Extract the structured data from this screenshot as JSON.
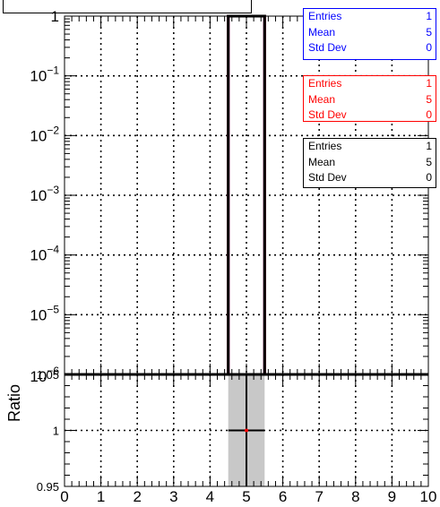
{
  "chart_data": [
    {
      "type": "bar",
      "scale": "log",
      "x": [
        0,
        1,
        2,
        3,
        4,
        5,
        6,
        7,
        8,
        9,
        10
      ],
      "xlim": [
        0,
        10
      ],
      "ylim": [
        1e-06,
        1
      ],
      "y_tick_labels": [
        "1",
        "10^-1",
        "10^-2",
        "10^-3",
        "10^-4",
        "10^-5",
        "10^-6"
      ],
      "grid": true,
      "series": [
        {
          "color": "#0000ff",
          "bins": [
            {
              "x_low": 4.5,
              "x_high": 5.5,
              "value": 1
            }
          ]
        },
        {
          "color": "#ff0000",
          "bins": [
            {
              "x_low": 4.5,
              "x_high": 5.5,
              "value": 1
            }
          ]
        },
        {
          "color": "#000000",
          "bins": [
            {
              "x_low": 4.5,
              "x_high": 5.5,
              "value": 1
            }
          ]
        }
      ]
    },
    {
      "type": "scatter",
      "ylabel": "Ratio",
      "xlim": [
        0,
        10
      ],
      "ylim": [
        0.95,
        1.05
      ],
      "y_tick_labels": [
        "0.95",
        "1",
        "1.05"
      ],
      "x_tick_labels": [
        "0",
        "1",
        "2",
        "3",
        "4",
        "5",
        "6",
        "7",
        "8",
        "9",
        "10"
      ],
      "grid": true,
      "points": [
        {
          "x": 5,
          "y": 1,
          "x_err": 0.5,
          "y_err_band": [
            0.95,
            1.05
          ]
        }
      ],
      "reference_line": 1
    }
  ],
  "stats_boxes": [
    {
      "color": "#0000ff",
      "rows": [
        [
          "Entries",
          "1"
        ],
        [
          "Mean",
          "5"
        ],
        [
          "Std Dev",
          "0"
        ]
      ]
    },
    {
      "color": "#ff0000",
      "rows": [
        [
          "Entries",
          "1"
        ],
        [
          "Mean",
          "5"
        ],
        [
          "Std Dev",
          "0"
        ]
      ]
    },
    {
      "color": "#000000",
      "rows": [
        [
          "Entries",
          "1"
        ],
        [
          "Mean",
          "5"
        ],
        [
          "Std Dev",
          "0"
        ]
      ]
    }
  ]
}
